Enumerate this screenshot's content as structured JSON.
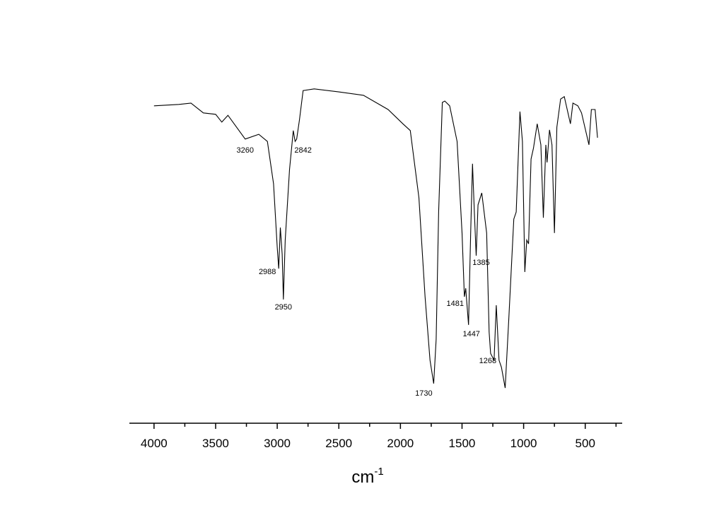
{
  "chart_data": {
    "type": "line",
    "x_label": "cm",
    "x_label_superscript": "-1",
    "xlim": [
      4200,
      200
    ],
    "ylim": [
      0,
      100
    ],
    "xticks": [
      4000,
      3500,
      3000,
      2500,
      2000,
      1500,
      1000,
      500
    ],
    "xminorticks": [
      3750,
      3250,
      2750,
      2250,
      1750,
      1250,
      750,
      250
    ],
    "color": "#000000",
    "x": [
      4000,
      3800,
      3700,
      3600,
      3500,
      3450,
      3400,
      3350,
      3260,
      3150,
      3080,
      3030,
      3000,
      2988,
      2975,
      2960,
      2950,
      2935,
      2900,
      2870,
      2855,
      2842,
      2820,
      2790,
      2700,
      2500,
      2300,
      2100,
      1980,
      1920,
      1850,
      1800,
      1760,
      1730,
      1710,
      1690,
      1660,
      1640,
      1600,
      1540,
      1500,
      1481,
      1470,
      1447,
      1430,
      1415,
      1400,
      1385,
      1370,
      1340,
      1300,
      1280,
      1268,
      1240,
      1222,
      1200,
      1180,
      1150,
      1120,
      1080,
      1060,
      1030,
      1010,
      990,
      975,
      960,
      940,
      920,
      890,
      860,
      840,
      820,
      810,
      790,
      770,
      750,
      730,
      700,
      670,
      640,
      620,
      600,
      560,
      530,
      470,
      450,
      420,
      400
    ],
    "values": [
      93.8,
      94.2,
      94.6,
      91.7,
      91.3,
      89.0,
      91.0,
      88.5,
      84.0,
      85.4,
      83.3,
      70.8,
      52.1,
      45.8,
      57.9,
      50.0,
      36.7,
      54.2,
      75.0,
      86.5,
      83.3,
      84.0,
      89.6,
      98.3,
      98.8,
      97.9,
      96.9,
      92.7,
      88.5,
      86.5,
      66.7,
      37.5,
      18.8,
      11.9,
      25.0,
      62.5,
      94.8,
      95.2,
      93.8,
      83.3,
      56.3,
      37.5,
      40.0,
      29.2,
      56.3,
      76.7,
      62.5,
      49.6,
      64.6,
      68.1,
      56.3,
      27.1,
      20.8,
      18.8,
      35.0,
      18.8,
      16.7,
      10.6,
      31.3,
      60.4,
      62.5,
      92.1,
      83.3,
      44.8,
      54.2,
      53.1,
      78.1,
      81.3,
      88.5,
      82.3,
      60.8,
      82.3,
      77.1,
      86.7,
      82.3,
      56.3,
      87.5,
      95.8,
      96.5,
      91.7,
      88.5,
      94.6,
      93.8,
      91.7,
      82.3,
      92.7,
      92.7,
      84.4
    ],
    "peak_labels": [
      3260,
      2842,
      2988,
      2950,
      1385,
      1481,
      1447,
      1268,
      1730
    ]
  }
}
